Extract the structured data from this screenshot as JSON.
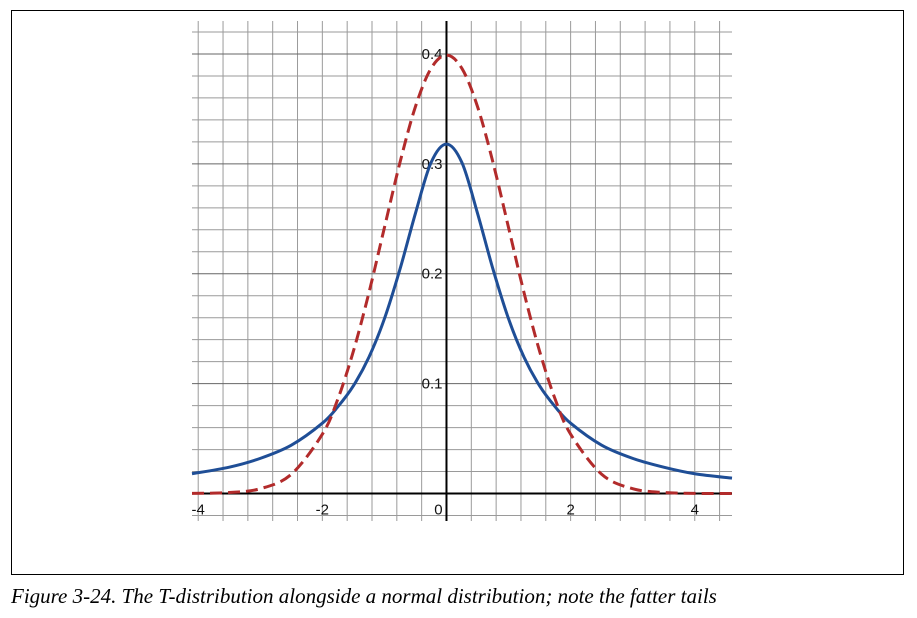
{
  "caption": "Figure 3-24. The T-distribution alongside a normal distribution; note the fatter tails",
  "chart_data": {
    "type": "line",
    "title": "",
    "xlabel": "",
    "ylabel": "",
    "xlim": [
      -4.1,
      4.6
    ],
    "ylim": [
      -0.025,
      0.43
    ],
    "x_ticks": [
      -4,
      -2,
      0,
      2,
      4
    ],
    "x_tick_labels": [
      "-4",
      "-2",
      "0",
      "2",
      "4"
    ],
    "y_ticks": [
      0.1,
      0.2,
      0.3,
      0.4
    ],
    "y_tick_labels": [
      "0.1",
      "0.2",
      "0.3",
      "0.4"
    ],
    "grid": true,
    "minor_grid_step_x": 0.4,
    "minor_grid_step_y": 0.02,
    "x": [
      -4.1,
      -3.5,
      -3.0,
      -2.5,
      -2.0,
      -1.75,
      -1.5,
      -1.25,
      -1.0,
      -0.75,
      -0.5,
      -0.25,
      0.0,
      0.25,
      0.5,
      0.75,
      1.0,
      1.25,
      1.5,
      1.75,
      2.0,
      2.5,
      3.0,
      3.5,
      4.0,
      4.6
    ],
    "series": [
      {
        "style": "solid",
        "color": "#1f4e96",
        "values": [
          0.018,
          0.024,
          0.032,
          0.044,
          0.064,
          0.079,
          0.098,
          0.124,
          0.159,
          0.204,
          0.255,
          0.301,
          0.318,
          0.301,
          0.255,
          0.204,
          0.159,
          0.124,
          0.098,
          0.079,
          0.064,
          0.044,
          0.032,
          0.024,
          0.018,
          0.014
        ]
      },
      {
        "style": "dashed",
        "color": "#b22b2b",
        "values": [
          0.0001,
          0.0009,
          0.0044,
          0.0175,
          0.054,
          0.086,
          0.1295,
          0.1826,
          0.242,
          0.3011,
          0.3521,
          0.3867,
          0.3989,
          0.3867,
          0.3521,
          0.3011,
          0.242,
          0.1826,
          0.1295,
          0.086,
          0.054,
          0.0175,
          0.0044,
          0.0009,
          0.0001,
          0.0
        ]
      }
    ]
  }
}
